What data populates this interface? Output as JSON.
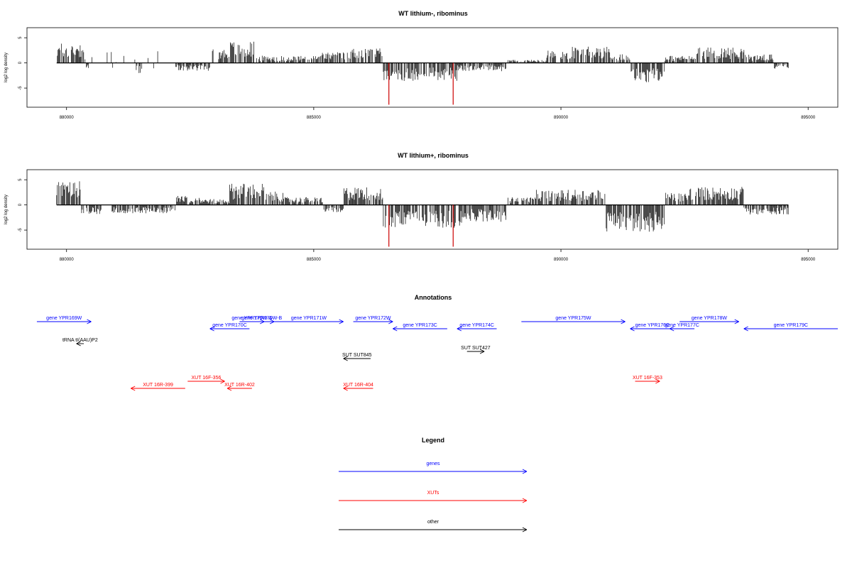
{
  "colors": {
    "gene": "#0000ff",
    "xut": "#ff0000",
    "other": "#000000",
    "highlight": "#cc0000",
    "bar": "#000000"
  },
  "chart_data": [
    {
      "type": "bar",
      "title": "WT lithium-, ribominus",
      "ylabel": "log2 log density",
      "xlim": [
        879200,
        895600
      ],
      "ylim": [
        -8.8,
        7.0
      ],
      "xticks": [
        "880000",
        "885000",
        "890000",
        "895000"
      ],
      "yticks": [
        "5",
        "0",
        "-5"
      ],
      "grid": false,
      "series": [
        {
          "name": "density",
          "x_range": [
            879800,
            894600
          ]
        }
      ],
      "highlight_regions": [
        {
          "x": 886520,
          "min": -8.3
        },
        {
          "x": 887820,
          "min": -8.3
        }
      ]
    },
    {
      "type": "bar",
      "title": "WT lithium+, ribominus",
      "ylabel": "log2 log density",
      "xlim": [
        879200,
        895600
      ],
      "ylim": [
        -8.8,
        7.0
      ],
      "xticks": [
        "880000",
        "885000",
        "890000",
        "895000"
      ],
      "yticks": [
        "5",
        "0",
        "-5"
      ],
      "grid": false,
      "series": [
        {
          "name": "density",
          "x_range": [
            879800,
            894600
          ]
        }
      ],
      "highlight_regions": [
        {
          "x": 886520,
          "min": -8.3
        },
        {
          "x": 887820,
          "min": -8.3
        }
      ]
    }
  ],
  "annotations": {
    "title": "Annotations",
    "items": [
      {
        "label": "gene YPR169W",
        "type": "gene",
        "start": 879400,
        "end": 880500,
        "strand": "+"
      },
      {
        "label": "gene YPR170W-A",
        "type": "gene",
        "start": 883500,
        "end": 884000,
        "strand": "+"
      },
      {
        "label": "gene YPR170W-B",
        "type": "gene",
        "start": 883700,
        "end": 884200,
        "strand": "+"
      },
      {
        "label": "gene YPR170C",
        "type": "gene",
        "start": 882900,
        "end": 883700,
        "strand": "-"
      },
      {
        "label": "gene YPR171W",
        "type": "gene",
        "start": 884200,
        "end": 885600,
        "strand": "+"
      },
      {
        "label": "gene YPR172W",
        "type": "gene",
        "start": 885800,
        "end": 886600,
        "strand": "+"
      },
      {
        "label": "gene YPR173C",
        "type": "gene",
        "start": 886600,
        "end": 887700,
        "strand": "-"
      },
      {
        "label": "gene YPR174C",
        "type": "gene",
        "start": 887900,
        "end": 888700,
        "strand": "-"
      },
      {
        "label": "gene YPR175W",
        "type": "gene",
        "start": 889200,
        "end": 891300,
        "strand": "+"
      },
      {
        "label": "gene YPR176C",
        "type": "gene",
        "start": 891400,
        "end": 892300,
        "strand": "-"
      },
      {
        "label": "gene YPR177C",
        "type": "gene",
        "start": 892200,
        "end": 892700,
        "strand": "-"
      },
      {
        "label": "gene YPR178W",
        "type": "gene",
        "start": 892400,
        "end": 893600,
        "strand": "+"
      },
      {
        "label": "gene YPR179C",
        "type": "gene",
        "start": 893700,
        "end": 895600,
        "strand": "-"
      },
      {
        "label": "tRNA tI(AAU)P2",
        "type": "other",
        "start": 880200,
        "end": 880350,
        "strand": "-"
      },
      {
        "label": "SUT SUT845",
        "type": "other",
        "start": 885600,
        "end": 886150,
        "strand": "-"
      },
      {
        "label": "SUT SUT427",
        "type": "other",
        "start": 888100,
        "end": 888450,
        "strand": "+"
      },
      {
        "label": "XUT 16R-399",
        "type": "xut",
        "start": 881300,
        "end": 882400,
        "strand": "-"
      },
      {
        "label": "XUT 16F-356",
        "type": "xut",
        "start": 882450,
        "end": 883200,
        "strand": "+"
      },
      {
        "label": "XUT 16R-402",
        "type": "xut",
        "start": 883250,
        "end": 883750,
        "strand": "-"
      },
      {
        "label": "XUT 16R-404",
        "type": "xut",
        "start": 885600,
        "end": 886200,
        "strand": "-"
      },
      {
        "label": "XUT 16F-353",
        "type": "xut",
        "start": 891500,
        "end": 892000,
        "strand": "+"
      }
    ]
  },
  "legend": {
    "title": "Legend",
    "items": [
      {
        "label": "genes",
        "type": "gene"
      },
      {
        "label": "XUTs",
        "type": "xut"
      },
      {
        "label": "other",
        "type": "other"
      }
    ]
  }
}
